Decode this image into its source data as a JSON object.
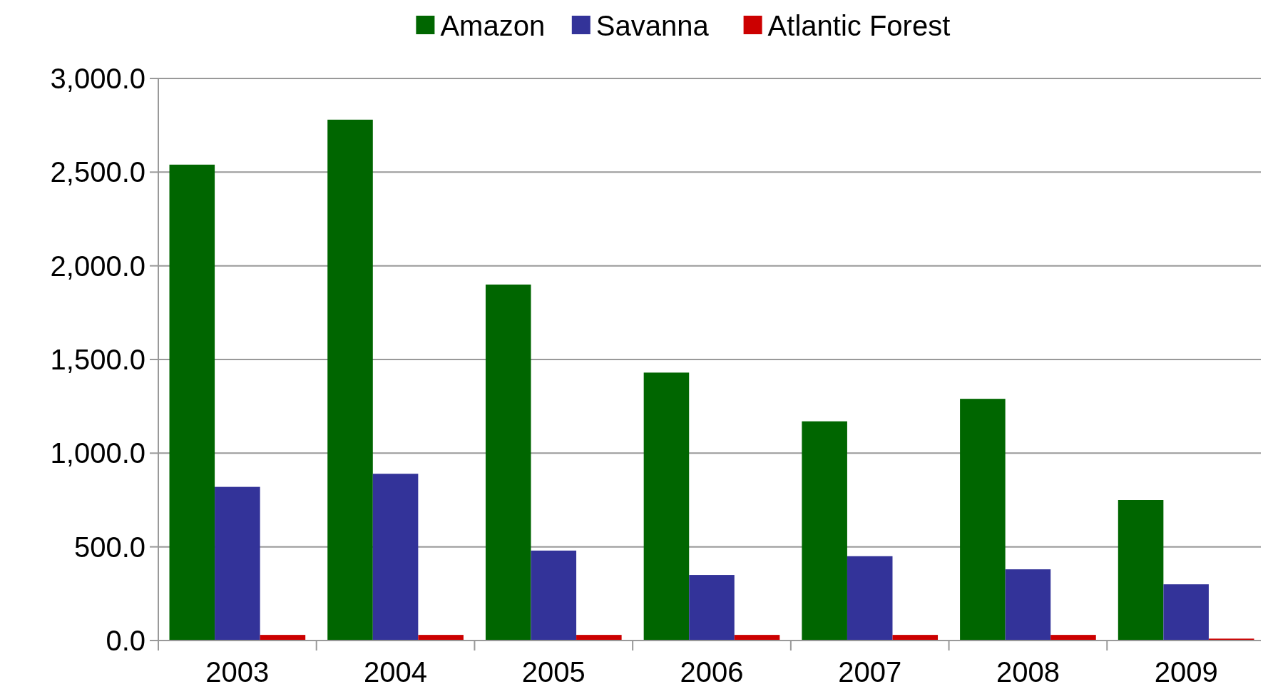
{
  "chart_data": {
    "type": "bar",
    "categories": [
      "2003",
      "2004",
      "2005",
      "2006",
      "2007",
      "2008",
      "2009"
    ],
    "series": [
      {
        "name": "Amazon",
        "color": "#006600",
        "values": [
          2540,
          2780,
          1900,
          1430,
          1170,
          1290,
          750
        ]
      },
      {
        "name": "Savanna",
        "color": "#333399",
        "values": [
          820,
          890,
          480,
          350,
          450,
          380,
          300
        ]
      },
      {
        "name": "Atlantic Forest",
        "color": "#cc0000",
        "values": [
          30,
          30,
          30,
          30,
          30,
          30,
          10
        ]
      }
    ],
    "ylim": [
      0,
      3000
    ],
    "yticks": [
      {
        "value": 0,
        "label": "0.0"
      },
      {
        "value": 500,
        "label": "500.0"
      },
      {
        "value": 1000,
        "label": "1,000.0"
      },
      {
        "value": 1500,
        "label": "1,500.0"
      },
      {
        "value": 2000,
        "label": "2,000.0"
      },
      {
        "value": 2500,
        "label": "2,500.0"
      },
      {
        "value": 3000,
        "label": "3,000.0"
      }
    ],
    "grid": "y",
    "legend": "top"
  }
}
